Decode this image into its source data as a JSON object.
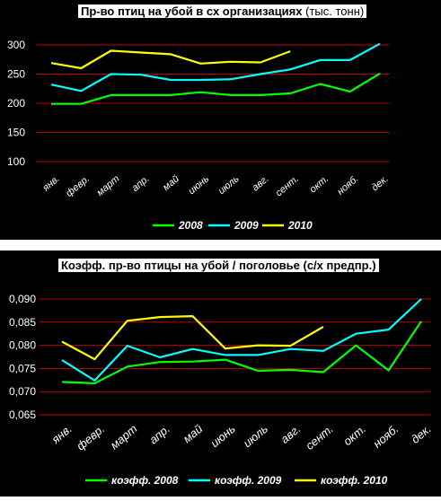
{
  "chart_data": [
    {
      "type": "line",
      "title": "Пр-во птиц на убой в сх организациях",
      "title_unit": "(тыс. тонн)",
      "categories": [
        "янв.",
        "февр.",
        "март",
        "апр.",
        "май",
        "июнь",
        "июль",
        "авг.",
        "сент.",
        "окт.",
        "нояб.",
        "дек."
      ],
      "ylim": [
        100,
        300
      ],
      "yticks": [
        "300",
        "250",
        "200",
        "150",
        "100"
      ],
      "grid": true,
      "legend_position": "bottom",
      "series": [
        {
          "name": "2008",
          "color": "#00ff00",
          "values": [
            199,
            199,
            214,
            214,
            214,
            219,
            214,
            214,
            217,
            233,
            220,
            251
          ]
        },
        {
          "name": "2009",
          "color": "#00ffff",
          "values": [
            232,
            221,
            250,
            249,
            240,
            240,
            241,
            250,
            258,
            274,
            274,
            302
          ]
        },
        {
          "name": "2010",
          "color": "#ffff00",
          "values": [
            269,
            260,
            290,
            287,
            284,
            268,
            271,
            270,
            289,
            null,
            null,
            null
          ]
        }
      ]
    },
    {
      "type": "line",
      "title": "Коэфф. пр-во птицы на убой / поголовье (с/х предпр.)",
      "categories": [
        "янв.",
        "февр.",
        "март",
        "апр.",
        "май",
        "июнь",
        "июль",
        "авг.",
        "сент.",
        "окт.",
        "нояб.",
        "дек."
      ],
      "ylim": [
        0.065,
        0.09
      ],
      "yticks": [
        "0,090",
        "0,085",
        "0,080",
        "0,075",
        "0,070",
        "0,065"
      ],
      "grid": true,
      "legend_position": "bottom",
      "series": [
        {
          "name": "коэфф. 2008",
          "color": "#00ff00",
          "values": [
            0.0721,
            0.0718,
            0.0754,
            0.0764,
            0.0765,
            0.0769,
            0.0745,
            0.0747,
            0.0742,
            0.08,
            0.0746,
            0.0852
          ]
        },
        {
          "name": "коэфф. 2009",
          "color": "#00ffff",
          "values": [
            0.0768,
            0.0724,
            0.0799,
            0.0774,
            0.0792,
            0.0779,
            0.0779,
            0.0792,
            0.0788,
            0.0825,
            0.0834,
            0.09
          ]
        },
        {
          "name": "коэфф. 2010",
          "color": "#ffff00",
          "values": [
            0.0808,
            0.077,
            0.0853,
            0.0861,
            0.0863,
            0.0793,
            0.08,
            0.0799,
            0.084,
            null,
            null,
            null
          ]
        }
      ]
    }
  ]
}
